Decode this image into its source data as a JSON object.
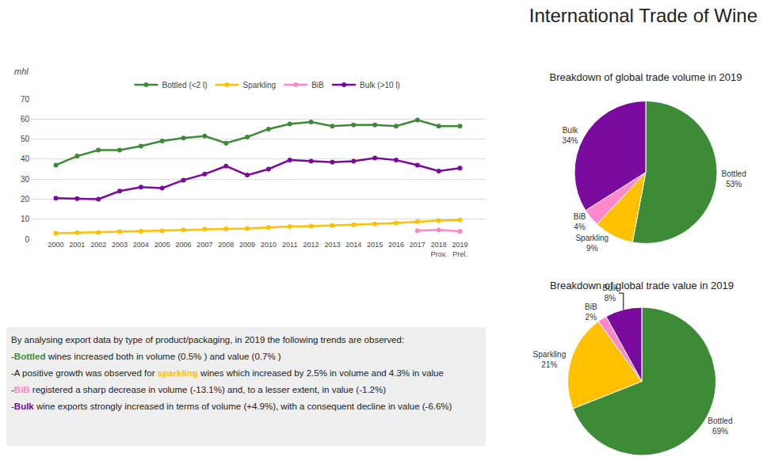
{
  "title": "International Trade of Wine",
  "chart_data": [
    {
      "type": "line",
      "ylabel": "mhl",
      "categories": [
        "2000",
        "2001",
        "2002",
        "2003",
        "2004",
        "2005",
        "2006",
        "2007",
        "2008",
        "2009",
        "2010",
        "2011",
        "2012",
        "2013",
        "2014",
        "2015",
        "2016",
        "2017",
        "2018\nProv.",
        "2019\nPrel."
      ],
      "series": [
        {
          "name": "Bottled (<2 l)",
          "color": "#3d8b37",
          "values": [
            37,
            41.5,
            44.5,
            44.5,
            46.5,
            49,
            50.5,
            51.5,
            48,
            51,
            55,
            57.5,
            58.5,
            56.5,
            57,
            57,
            56.5,
            59.5,
            56.5,
            56.5
          ]
        },
        {
          "name": "Sparkling",
          "color": "#ffc000",
          "values": [
            3,
            3.3,
            3.4,
            3.8,
            4,
            4.2,
            4.6,
            5,
            5.1,
            5.3,
            5.8,
            6.3,
            6.5,
            6.8,
            7.2,
            7.6,
            8.1,
            8.8,
            9.3,
            9.6
          ]
        },
        {
          "name": "BiB",
          "color": "#ff88cc",
          "values": [
            null,
            null,
            null,
            null,
            null,
            null,
            null,
            null,
            null,
            null,
            null,
            null,
            null,
            null,
            null,
            null,
            null,
            4.3,
            4.6,
            4.0
          ]
        },
        {
          "name": "Bulk (>10 l)",
          "color": "#7a0a9e",
          "values": [
            20.5,
            20.3,
            20,
            24,
            26,
            25.5,
            29.5,
            32.5,
            36.5,
            32,
            35,
            39.5,
            39,
            38.5,
            39,
            40.5,
            39.5,
            37,
            34,
            35.5
          ]
        }
      ],
      "ylim": [
        0,
        70
      ],
      "yticks": [
        0,
        10,
        20,
        30,
        40,
        50,
        60,
        70
      ],
      "grid": true,
      "legend": "top",
      "marker": "circle",
      "line_style": "solid"
    },
    {
      "type": "pie",
      "title": "Breakdown of global trade volume in 2019",
      "categories": [
        "Bottled",
        "Sparkling",
        "BiB",
        "Bulk"
      ],
      "values": [
        53,
        9,
        4,
        34
      ],
      "value_labels": [
        "53%",
        "9%",
        "4%",
        "34%"
      ],
      "colors": [
        "#3d8b37",
        "#ffc000",
        "#ff88cc",
        "#7a0a9e"
      ]
    },
    {
      "type": "pie",
      "title": "Breakdown of global trade value in 2019",
      "categories": [
        "Bottled",
        "Sparkling",
        "BiB",
        "Bulk"
      ],
      "values": [
        69,
        21,
        2,
        8
      ],
      "value_labels": [
        "69%",
        "21%",
        "2%",
        "8%"
      ],
      "colors": [
        "#3d8b37",
        "#ffc000",
        "#ff88cc",
        "#7a0a9e"
      ]
    }
  ],
  "notes": {
    "intro": "By analysing export data by type of product/packaging, in 2019 the following trends are observed:",
    "items": [
      [
        {
          "text": "-"
        },
        {
          "text": "Bottled",
          "color": "#3d8b37"
        },
        {
          "text": " wines increased both in volume (0.5% ) and value (0.7% )"
        }
      ],
      [
        {
          "text": "-A positive growth was observed for "
        },
        {
          "text": "sparkling",
          "color": "#ffc000"
        },
        {
          "text": " wines which increased by 2.5% in volume and 4.3% in value"
        }
      ],
      [
        {
          "text": "-"
        },
        {
          "text": "BiB",
          "color": "#ff88cc"
        },
        {
          "text": " registered a sharp decrease in volume (-13.1%) and, to a lesser extent, in value (-1.2%)"
        }
      ],
      [
        {
          "text": "-"
        },
        {
          "text": "Bulk",
          "color": "#7a0a9e"
        },
        {
          "text": " wine exports strongly increased in terms of volume (+4.9%), with a consequent decline in value (-6.6%)"
        }
      ]
    ]
  }
}
